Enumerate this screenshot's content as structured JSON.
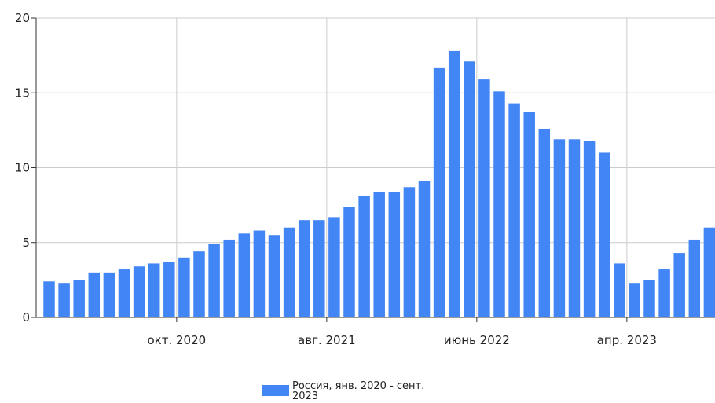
{
  "chart_data": {
    "type": "bar",
    "color": "#4285f4",
    "ylim": [
      0,
      20
    ],
    "y_ticks": [
      "0",
      "5",
      "10",
      "15",
      "20"
    ],
    "x_tick_labels": [
      {
        "label": "окт. 2020",
        "category_index": 9
      },
      {
        "label": "авг. 2021",
        "category_index": 19
      },
      {
        "label": "июнь 2022",
        "category_index": 29
      },
      {
        "label": "апр. 2023",
        "category_index": 39
      }
    ],
    "grid": true,
    "legend_position": "bottom-center",
    "series": [
      {
        "name": "Россия, янв. 2020 - сент. 2023",
        "values": [
          2.4,
          2.3,
          2.5,
          3.0,
          3.0,
          3.2,
          3.4,
          3.6,
          3.7,
          4.0,
          4.4,
          4.9,
          5.2,
          5.6,
          5.8,
          5.5,
          6.0,
          6.5,
          6.5,
          6.7,
          7.4,
          8.1,
          8.4,
          8.4,
          8.7,
          9.1,
          16.7,
          17.8,
          17.1,
          15.9,
          15.1,
          14.3,
          13.7,
          12.6,
          11.9,
          11.9,
          11.8,
          11.0,
          3.6,
          2.3,
          2.5,
          3.2,
          4.3,
          5.2,
          6.0
        ]
      }
    ]
  },
  "legend": {
    "label_line1": "Россия, янв. 2020 - сент.",
    "label_line2": "2023"
  }
}
